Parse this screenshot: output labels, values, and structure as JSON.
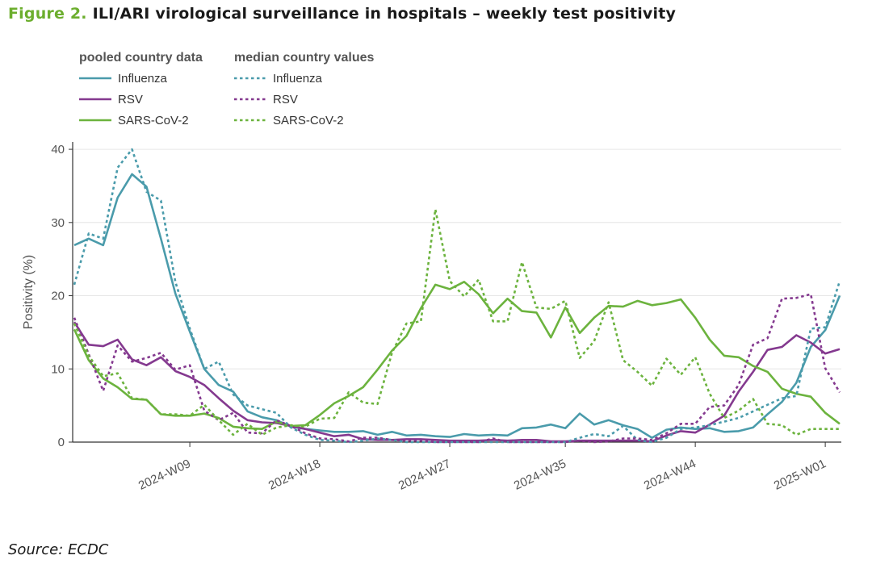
{
  "figure": {
    "number": "Figure 2.",
    "title": "ILI/ARI virological surveillance in hospitals – weekly test positivity",
    "source": "Source: ECDC"
  },
  "colors": {
    "influenza": "#4a9bab",
    "rsv": "#84398f",
    "sars": "#6cb33e"
  },
  "chart_data": {
    "type": "line",
    "ylabel": "Positivity (%)",
    "xlabel": "",
    "ylim": [
      0,
      41
    ],
    "yticks": [
      0,
      10,
      20,
      30,
      40
    ],
    "xticks": [
      {
        "week": 9,
        "label": "2024-W09"
      },
      {
        "week": 18,
        "label": "2024-W18"
      },
      {
        "week": 27,
        "label": "2024-W27"
      },
      {
        "week": 35,
        "label": "2024-W35"
      },
      {
        "week": 44,
        "label": "2024-W44"
      },
      {
        "week": 53,
        "label": "2025-W01"
      }
    ],
    "x_weeks": [
      1,
      2,
      3,
      4,
      5,
      6,
      7,
      8,
      9,
      10,
      11,
      12,
      13,
      14,
      15,
      16,
      17,
      18,
      19,
      20,
      21,
      22,
      23,
      24,
      25,
      26,
      27,
      28,
      29,
      30,
      31,
      32,
      33,
      34,
      35,
      36,
      37,
      38,
      39,
      40,
      41,
      42,
      43,
      44,
      45,
      46,
      47,
      48,
      49,
      50,
      51,
      52,
      53,
      54
    ],
    "legend": {
      "group_pooled": "pooled country data",
      "group_median": "median country values"
    },
    "series": [
      {
        "name": "Influenza",
        "group": "pooled",
        "color_key": "influenza",
        "dashed": false,
        "values": [
          26.9,
          27.8,
          26.9,
          33.4,
          36.6,
          34.9,
          27.8,
          20.3,
          15.1,
          10.0,
          7.8,
          6.9,
          4.2,
          3.4,
          3.0,
          2.1,
          1.8,
          1.6,
          1.4,
          1.4,
          1.5,
          1.0,
          1.4,
          0.9,
          1.0,
          0.8,
          0.7,
          1.1,
          0.9,
          1.0,
          0.9,
          1.9,
          2.0,
          2.4,
          1.9,
          3.9,
          2.4,
          3.0,
          2.3,
          1.8,
          0.6,
          1.7,
          2.0,
          1.8,
          1.9,
          1.4,
          1.5,
          2.0,
          3.8,
          5.5,
          8.1,
          13.0,
          15.3,
          20.0
        ]
      },
      {
        "name": "RSV",
        "group": "pooled",
        "color_key": "rsv",
        "dashed": false,
        "values": [
          16.4,
          13.3,
          13.1,
          14.0,
          11.3,
          10.5,
          11.6,
          9.7,
          8.9,
          7.8,
          6.0,
          4.3,
          3.0,
          2.7,
          2.6,
          2.2,
          1.8,
          1.3,
          0.8,
          1.0,
          0.4,
          0.3,
          0.3,
          0.4,
          0.4,
          0.3,
          0.2,
          0.2,
          0.2,
          0.3,
          0.2,
          0.3,
          0.3,
          0.1,
          0.1,
          0.2,
          0.2,
          0.2,
          0.2,
          0.2,
          0.1,
          0.9,
          1.5,
          1.3,
          2.4,
          3.6,
          6.9,
          9.6,
          12.6,
          13.0,
          14.6,
          13.6,
          12.1,
          12.7
        ]
      },
      {
        "name": "SARS-CoV-2",
        "group": "pooled",
        "color_key": "sars",
        "dashed": false,
        "values": [
          15.4,
          11.2,
          8.7,
          7.5,
          5.9,
          5.8,
          3.8,
          3.6,
          3.6,
          3.9,
          3.3,
          2.1,
          1.9,
          1.8,
          2.8,
          2.2,
          2.3,
          3.7,
          5.3,
          6.3,
          7.5,
          9.9,
          12.5,
          14.5,
          18.3,
          21.5,
          20.9,
          21.9,
          20.2,
          17.6,
          19.6,
          17.9,
          17.7,
          14.3,
          18.4,
          14.9,
          17.0,
          18.6,
          18.5,
          19.3,
          18.7,
          19.0,
          19.5,
          17.0,
          14.0,
          11.8,
          11.6,
          10.4,
          9.6,
          7.3,
          6.6,
          6.2,
          4.0,
          2.5
        ]
      },
      {
        "name": "Influenza",
        "group": "median",
        "color_key": "influenza",
        "dashed": true,
        "values": [
          21.5,
          28.5,
          27.8,
          37.5,
          40.0,
          34.2,
          33.0,
          21.9,
          15.5,
          10.0,
          11.0,
          6.5,
          5.0,
          4.5,
          4.0,
          2.0,
          1.0,
          0.3,
          0.2,
          0.0,
          0.2,
          0.5,
          0.3,
          0.0,
          0.0,
          0.0,
          0.0,
          0.0,
          0.0,
          0.0,
          0.0,
          0.0,
          0.0,
          0.0,
          0.0,
          0.6,
          1.1,
          0.8,
          2.2,
          0.3,
          0.0,
          0.6,
          1.8,
          2.0,
          2.3,
          2.8,
          3.3,
          4.2,
          5.1,
          6.0,
          6.3,
          15.5,
          15.7,
          22.0
        ]
      },
      {
        "name": "RSV",
        "group": "median",
        "color_key": "rsv",
        "dashed": true,
        "values": [
          17.0,
          12.0,
          7.0,
          13.2,
          11.0,
          11.5,
          12.2,
          9.9,
          10.5,
          4.3,
          3.0,
          4.0,
          1.3,
          1.2,
          3.0,
          2.2,
          1.2,
          0.5,
          0.4,
          0.1,
          0.6,
          0.6,
          0.3,
          0.2,
          0.2,
          0.0,
          0.0,
          0.0,
          0.0,
          0.5,
          0.0,
          0.0,
          0.0,
          0.0,
          0.0,
          0.2,
          0.0,
          0.1,
          0.5,
          0.5,
          0.3,
          1.2,
          2.5,
          2.5,
          4.8,
          5.0,
          7.8,
          13.3,
          14.2,
          19.6,
          19.7,
          20.2,
          10.1,
          6.8
        ]
      },
      {
        "name": "SARS-CoV-2",
        "group": "median",
        "color_key": "sars",
        "dashed": true,
        "values": [
          16.2,
          11.8,
          9.0,
          9.4,
          6.0,
          5.8,
          3.8,
          3.8,
          3.6,
          5.1,
          3.0,
          1.0,
          2.5,
          1.0,
          2.0,
          2.3,
          2.1,
          3.2,
          3.3,
          6.8,
          5.4,
          5.2,
          12.2,
          16.2,
          16.5,
          31.8,
          22.0,
          19.9,
          22.2,
          16.5,
          16.5,
          24.6,
          18.4,
          18.2,
          19.3,
          11.5,
          13.8,
          19.1,
          11.2,
          9.6,
          7.7,
          11.4,
          9.2,
          11.6,
          6.6,
          3.3,
          4.3,
          5.9,
          2.5,
          2.3,
          1.0,
          1.8,
          1.8,
          1.8
        ]
      }
    ]
  }
}
